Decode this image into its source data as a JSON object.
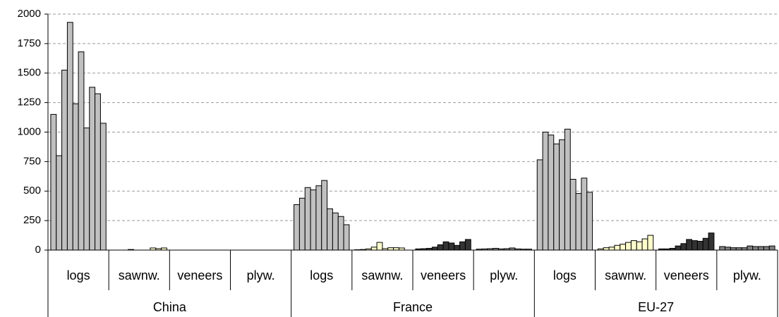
{
  "chart_data": {
    "type": "grouped_bar",
    "ylim": [
      0,
      2000
    ],
    "yticks": [
      0,
      250,
      500,
      750,
      1000,
      1250,
      1500,
      1750,
      2000
    ],
    "grid": true,
    "groups": [
      {
        "name": "China",
        "subgroups": [
          {
            "name": "logs",
            "color": "#c0c0c0",
            "values": [
              1150,
              800,
              1525,
              1930,
              1240,
              1680,
              1035,
              1380,
              1325,
              1075
            ]
          },
          {
            "name": "sawnw.",
            "color": "#ffffcc",
            "values": [
              0,
              0,
              0,
              5,
              0,
              0,
              0,
              18,
              12,
              18
            ]
          },
          {
            "name": "veneers",
            "color": "#333333",
            "values": [
              0,
              0,
              0,
              0,
              0,
              0,
              0,
              0,
              0,
              0
            ]
          },
          {
            "name": "plyw.",
            "color": "#808080",
            "values": [
              0,
              0,
              0,
              0,
              0,
              0,
              0,
              0,
              0,
              0
            ]
          }
        ]
      },
      {
        "name": "France",
        "subgroups": [
          {
            "name": "logs",
            "color": "#c0c0c0",
            "values": [
              385,
              440,
              530,
              510,
              545,
              590,
              350,
              315,
              285,
              215
            ]
          },
          {
            "name": "sawnw.",
            "color": "#ffffcc",
            "values": [
              3,
              5,
              10,
              25,
              65,
              12,
              20,
              20,
              18,
              0
            ]
          },
          {
            "name": "veneers",
            "color": "#333333",
            "values": [
              10,
              12,
              15,
              25,
              45,
              70,
              60,
              40,
              70,
              90
            ]
          },
          {
            "name": "plyw.",
            "color": "#808080",
            "values": [
              8,
              10,
              12,
              15,
              10,
              12,
              18,
              10,
              8,
              8
            ]
          }
        ]
      },
      {
        "name": "EU-27",
        "subgroups": [
          {
            "name": "logs",
            "color": "#c0c0c0",
            "values": [
              765,
              1000,
              975,
              900,
              935,
              1025,
              600,
              480,
              610,
              490
            ]
          },
          {
            "name": "sawnw.",
            "color": "#ffffcc",
            "values": [
              10,
              20,
              25,
              40,
              50,
              65,
              80,
              70,
              95,
              125
            ]
          },
          {
            "name": "veneers",
            "color": "#333333",
            "values": [
              10,
              10,
              15,
              35,
              55,
              90,
              80,
              75,
              100,
              145
            ]
          },
          {
            "name": "plyw.",
            "color": "#808080",
            "values": [
              30,
              25,
              20,
              20,
              20,
              35,
              30,
              30,
              30,
              35
            ]
          }
        ]
      }
    ]
  }
}
